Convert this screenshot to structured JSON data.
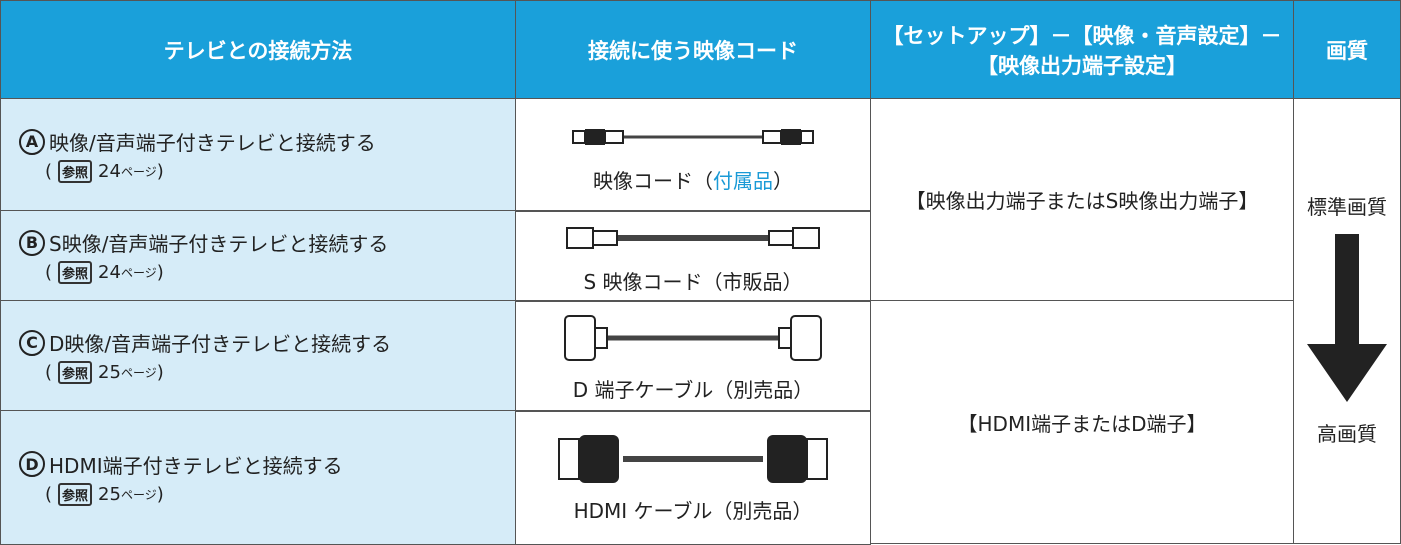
{
  "header": {
    "col1": "テレビとの接続方法",
    "col2": "接続に使う映像コード",
    "col3_line1": "【セットアップ】－【映像・音声設定】－",
    "col3_line2": "【映像出力端子設定】",
    "col4": "画質"
  },
  "rows": [
    {
      "letter": "A",
      "title": "映像/音声端子付きテレビと接続する",
      "ref": {
        "open": "(",
        "icon": "参照",
        "page": "24",
        "unit": "ページ",
        "close": ")"
      },
      "cable": [
        "映像コード（",
        "付属品",
        "）"
      ]
    },
    {
      "letter": "B",
      "title": "S映像/音声端子付きテレビと接続する",
      "ref": {
        "open": "(",
        "icon": "参照",
        "page": "24",
        "unit": "ページ",
        "close": ")"
      },
      "cable": [
        "S 映像コード（市販品）"
      ]
    },
    {
      "letter": "C",
      "title": "D映像/音声端子付きテレビと接続する",
      "ref": {
        "open": "(",
        "icon": "参照",
        "page": "25",
        "unit": "ページ",
        "close": ")"
      },
      "cable": [
        "D 端子ケーブル（別売品）"
      ]
    },
    {
      "letter": "D",
      "title": "HDMI端子付きテレビと接続する",
      "ref": {
        "open": "(",
        "icon": "参照",
        "page": "25",
        "unit": "ページ",
        "close": ")"
      },
      "cable": [
        "HDMI ケーブル（別売品）"
      ]
    }
  ],
  "settings": [
    "【映像出力端子またはS映像出力端子】",
    "【HDMI端子またはD端子】"
  ],
  "quality": {
    "top": "標準画質",
    "bottom": "高画質"
  }
}
